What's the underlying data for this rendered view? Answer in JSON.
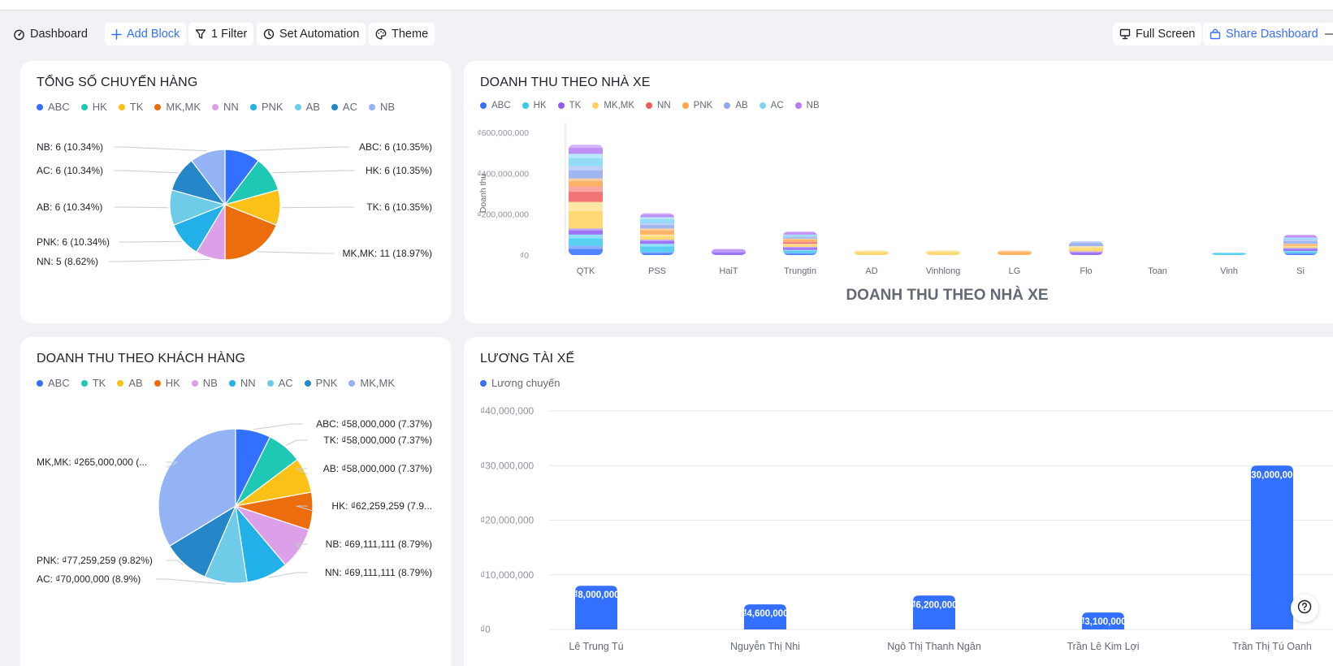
{
  "toolbar": {
    "dashboard_label": "Dashboard",
    "add_block_label": "Add Block",
    "filter_label": "1 Filter",
    "automation_label": "Set Automation",
    "theme_label": "Theme",
    "fullscreen_label": "Full Screen",
    "share_label": "Share Dashboard",
    "more_label": "—"
  },
  "colors": {
    "accent": "#3370ff",
    "card_bg": "#ffffff",
    "page_bg": "#f0f2f5"
  },
  "cards": {
    "shipments": {
      "title": "TỔNG SỐ CHUYẾN HÀNG"
    },
    "revenue_vendor": {
      "title": "DOANH THU THEO NHÀ XE"
    },
    "revenue_customer": {
      "title": "DOANH THU THEO KHÁCH HÀNG"
    },
    "driver_salary": {
      "title": "LƯƠNG TÀI XẾ"
    }
  },
  "chart_data": [
    {
      "type": "pie",
      "title": "TỔNG SỐ CHUYẾN HÀNG",
      "legend": [
        "ABC",
        "HK",
        "TK",
        "MK,MK",
        "NN",
        "PNK",
        "AB",
        "AC",
        "NB"
      ],
      "slices": [
        {
          "name": "ABC",
          "value": 6,
          "label": "ABC: 6 (10.35%)",
          "color": "#3370ff"
        },
        {
          "name": "HK",
          "value": 6,
          "label": "HK: 6 (10.35%)",
          "color": "#1fc8b4"
        },
        {
          "name": "TK",
          "value": 6,
          "label": "TK: 6 (10.35%)",
          "color": "#fcc117"
        },
        {
          "name": "MK,MK",
          "value": 11,
          "label": "MK,MK: 11 (18.97%)",
          "color": "#ec6d0e"
        },
        {
          "name": "NN",
          "value": 5,
          "label": "NN: 5 (8.62%)",
          "color": "#dca0e8"
        },
        {
          "name": "PNK",
          "value": 6,
          "label": "PNK: 6 (10.34%)",
          "color": "#21b0e8"
        },
        {
          "name": "AB",
          "value": 6,
          "label": "AB: 6 (10.34%)",
          "color": "#6ecce8"
        },
        {
          "name": "AC",
          "value": 6,
          "label": "AC: 6 (10.34%)",
          "color": "#2587c8"
        },
        {
          "name": "NB",
          "value": 6,
          "label": "NB: 6 (10.34%)",
          "color": "#94b3f4"
        }
      ]
    },
    {
      "type": "bar",
      "title": "DOANH THU THEO NHÀ XE",
      "subtitle": "DOANH THU THEO NHÀ XE",
      "ylabel": "Doanh thu",
      "yticks": [
        "₫0",
        "₫200,000,000",
        "₫400,000,000",
        "₫600,000,000"
      ],
      "ylim": [
        0,
        600000000
      ],
      "stacked": true,
      "categories": [
        "QTK",
        "PSS",
        "HaiT",
        "Trungtin",
        "AD",
        "Vinhlong",
        "LG",
        "Flo",
        "Toan",
        "Vinh",
        "Si"
      ],
      "series": [
        {
          "name": "ABC",
          "color": "#3370ff",
          "values": [
            45000000,
            15000000,
            0,
            10000000,
            0,
            0,
            0,
            0,
            0,
            0,
            10000000
          ]
        },
        {
          "name": "HK",
          "color": "#3ac8ef",
          "values": [
            55000000,
            40000000,
            0,
            15000000,
            0,
            0,
            0,
            0,
            0,
            12000000,
            10000000
          ]
        },
        {
          "name": "TK",
          "color": "#8d5cf6",
          "values": [
            30000000,
            20000000,
            20000000,
            15000000,
            0,
            0,
            0,
            18000000,
            0,
            0,
            15000000
          ]
        },
        {
          "name": "MK,MK",
          "color": "#ffd25e",
          "values": [
            130000000,
            25000000,
            0,
            15000000,
            22000000,
            22000000,
            0,
            25000000,
            0,
            0,
            10000000
          ]
        },
        {
          "name": "NN",
          "color": "#ef5b5b",
          "values": [
            75000000,
            0,
            0,
            10000000,
            0,
            0,
            0,
            0,
            0,
            0,
            0
          ]
        },
        {
          "name": "PNK",
          "color": "#fda64a",
          "values": [
            40000000,
            30000000,
            0,
            15000000,
            0,
            0,
            22000000,
            0,
            0,
            0,
            10000000
          ]
        },
        {
          "name": "AB",
          "color": "#8fa9ee",
          "values": [
            60000000,
            25000000,
            0,
            10000000,
            0,
            0,
            0,
            25000000,
            0,
            0,
            20000000
          ]
        },
        {
          "name": "AC",
          "color": "#7fd6f4",
          "values": [
            60000000,
            30000000,
            0,
            10000000,
            0,
            0,
            0,
            0,
            0,
            0,
            10000000
          ]
        },
        {
          "name": "NB",
          "color": "#b57bf4",
          "values": [
            45000000,
            20000000,
            10000000,
            15000000,
            0,
            0,
            0,
            0,
            0,
            0,
            15000000
          ]
        }
      ]
    },
    {
      "type": "pie",
      "title": "DOANH THU THEO KHÁCH HÀNG",
      "legend": [
        "ABC",
        "TK",
        "AB",
        "HK",
        "NB",
        "NN",
        "AC",
        "PNK",
        "MK,MK"
      ],
      "slices": [
        {
          "name": "ABC",
          "value": 58000000,
          "label": "ABC: ₫58,000,000 (7.37%)",
          "color": "#3370ff"
        },
        {
          "name": "TK",
          "value": 58000000,
          "label": "TK: ₫58,000,000 (7.37%)",
          "color": "#1fc8b4"
        },
        {
          "name": "AB",
          "value": 58000000,
          "label": "AB: ₫58,000,000 (7.37%)",
          "color": "#fcc117"
        },
        {
          "name": "HK",
          "value": 62259259,
          "label": "HK: ₫62,259,259 (7.9...",
          "color": "#ec6d0e"
        },
        {
          "name": "NB",
          "value": 69111111,
          "label": "NB: ₫69,111,111 (8.79%)",
          "color": "#dca0e8"
        },
        {
          "name": "NN",
          "value": 69111111,
          "label": "NN: ₫69,111,111 (8.79%)",
          "color": "#21b0e8"
        },
        {
          "name": "AC",
          "value": 70000000,
          "label": "AC: ₫70,000,000 (8.9%)",
          "color": "#6ecce8"
        },
        {
          "name": "PNK",
          "value": 77259259,
          "label": "PNK: ₫77,259,259 (9.82%)",
          "color": "#2587c8"
        },
        {
          "name": "MK,MK",
          "value": 265000000,
          "label": "MK,MK: ₫265,000,000 (...",
          "color": "#94b3f4"
        }
      ]
    },
    {
      "type": "bar",
      "title": "LƯƠNG TÀI XẾ",
      "legend": [
        "Lương chuyến"
      ],
      "yticks": [
        "₫0",
        "₫10,000,000",
        "₫20,000,000",
        "₫30,000,000",
        "₫40,000,000"
      ],
      "ylim": [
        0,
        40000000
      ],
      "categories": [
        "Lê Trung Tú",
        "Nguyễn Thị  Nhi",
        "Ngô Thị Thanh Ngân",
        "Trần Lê Kim Lợi",
        "Trần Thị Tú Oanh"
      ],
      "series": [
        {
          "name": "Lương chuyến",
          "color": "#3370ff",
          "values": [
            8000000,
            4600000,
            6200000,
            3100000,
            30000000
          ],
          "labels": [
            "₫8,000,000",
            "₫4,600,000",
            "₫6,200,000",
            "₫3,100,000",
            "₫30,000,000"
          ]
        }
      ]
    }
  ]
}
